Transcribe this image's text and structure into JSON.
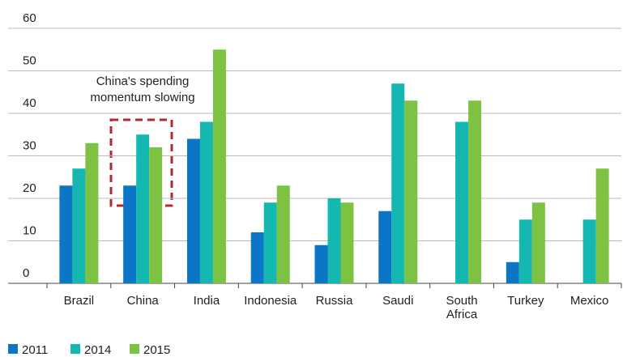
{
  "chart_data": {
    "type": "bar",
    "categories": [
      "Brazil",
      "China",
      "India",
      "Indonesia",
      "Russia",
      "Saudi",
      "South Africa",
      "Turkey",
      "Mexico"
    ],
    "series": [
      {
        "name": "2011",
        "color": "#0a76c5",
        "values": [
          23,
          23,
          34,
          12,
          9,
          17,
          null,
          5,
          null
        ]
      },
      {
        "name": "2014",
        "color": "#14b8b0",
        "values": [
          27,
          35,
          38,
          19,
          20,
          47,
          38,
          15,
          15
        ]
      },
      {
        "name": "2015",
        "color": "#7dc242",
        "values": [
          33,
          32,
          55,
          23,
          19,
          43,
          43,
          19,
          27
        ]
      }
    ],
    "annotation": [
      "China's spending",
      "momentum slowing"
    ],
    "ylim": [
      0,
      60
    ],
    "yticks": [
      0,
      10,
      20,
      30,
      40,
      50,
      60
    ],
    "grid": true,
    "legend": "bottom-left"
  }
}
